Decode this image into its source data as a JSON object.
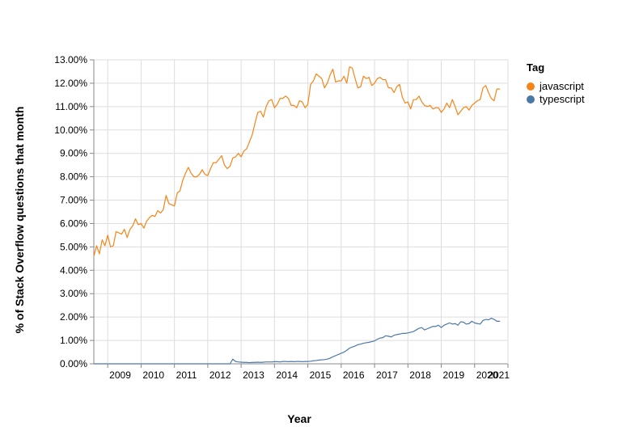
{
  "chart_data": {
    "type": "line",
    "xlabel": "Year",
    "ylabel": "% of Stack Overflow questions that month",
    "xlim": [
      "2008-08",
      "2021-01"
    ],
    "ylim": [
      0,
      13
    ],
    "x_ticks": [
      "2009",
      "2010",
      "2011",
      "2012",
      "2013",
      "2014",
      "2015",
      "2016",
      "2017",
      "2018",
      "2019",
      "2020",
      "2021"
    ],
    "y_ticks": [
      "0.00%",
      "1.00%",
      "2.00%",
      "3.00%",
      "4.00%",
      "5.00%",
      "6.00%",
      "7.00%",
      "8.00%",
      "9.00%",
      "10.00%",
      "11.00%",
      "12.00%",
      "13.00%"
    ],
    "grid": true,
    "legend": {
      "title": "Tag",
      "position": "right"
    },
    "series": [
      {
        "name": "javascript",
        "color": "#f58518",
        "points": [
          [
            "2008-08",
            4.6
          ],
          [
            "2008-09",
            5.05
          ],
          [
            "2008-10",
            4.7
          ],
          [
            "2008-11",
            5.3
          ],
          [
            "2008-12",
            5.05
          ],
          [
            "2009-01",
            5.5
          ],
          [
            "2009-02",
            5.0
          ],
          [
            "2009-03",
            5.05
          ],
          [
            "2009-04",
            5.65
          ],
          [
            "2009-05",
            5.6
          ],
          [
            "2009-06",
            5.55
          ],
          [
            "2009-07",
            5.75
          ],
          [
            "2009-08",
            5.4
          ],
          [
            "2009-09",
            5.75
          ],
          [
            "2009-10",
            5.9
          ],
          [
            "2009-11",
            6.2
          ],
          [
            "2009-12",
            5.95
          ],
          [
            "2010-01",
            6.0
          ],
          [
            "2010-02",
            5.8
          ],
          [
            "2010-03",
            6.1
          ],
          [
            "2010-04",
            6.25
          ],
          [
            "2010-05",
            6.35
          ],
          [
            "2010-06",
            6.3
          ],
          [
            "2010-07",
            6.55
          ],
          [
            "2010-08",
            6.45
          ],
          [
            "2010-09",
            6.6
          ],
          [
            "2010-10",
            7.2
          ],
          [
            "2010-11",
            6.85
          ],
          [
            "2010-12",
            6.8
          ],
          [
            "2011-01",
            6.75
          ],
          [
            "2011-02",
            7.3
          ],
          [
            "2011-03",
            7.4
          ],
          [
            "2011-04",
            7.85
          ],
          [
            "2011-05",
            8.15
          ],
          [
            "2011-06",
            8.4
          ],
          [
            "2011-07",
            8.15
          ],
          [
            "2011-08",
            8.0
          ],
          [
            "2011-09",
            8.0
          ],
          [
            "2011-10",
            8.1
          ],
          [
            "2011-11",
            8.3
          ],
          [
            "2011-12",
            8.1
          ],
          [
            "2012-01",
            8.05
          ],
          [
            "2012-02",
            8.35
          ],
          [
            "2012-03",
            8.6
          ],
          [
            "2012-04",
            8.6
          ],
          [
            "2012-05",
            8.75
          ],
          [
            "2012-06",
            8.9
          ],
          [
            "2012-07",
            8.5
          ],
          [
            "2012-08",
            8.35
          ],
          [
            "2012-09",
            8.45
          ],
          [
            "2012-10",
            8.8
          ],
          [
            "2012-11",
            8.85
          ],
          [
            "2012-12",
            9.0
          ],
          [
            "2013-01",
            8.85
          ],
          [
            "2013-02",
            9.1
          ],
          [
            "2013-03",
            9.2
          ],
          [
            "2013-04",
            9.5
          ],
          [
            "2013-05",
            9.8
          ],
          [
            "2013-06",
            10.3
          ],
          [
            "2013-07",
            10.75
          ],
          [
            "2013-08",
            10.8
          ],
          [
            "2013-09",
            10.55
          ],
          [
            "2013-10",
            11.0
          ],
          [
            "2013-11",
            11.25
          ],
          [
            "2013-12",
            11.3
          ],
          [
            "2014-01",
            10.95
          ],
          [
            "2014-02",
            11.1
          ],
          [
            "2014-03",
            11.35
          ],
          [
            "2014-04",
            11.35
          ],
          [
            "2014-05",
            11.45
          ],
          [
            "2014-06",
            11.35
          ],
          [
            "2014-07",
            11.05
          ],
          [
            "2014-08",
            11.05
          ],
          [
            "2014-09",
            10.95
          ],
          [
            "2014-10",
            11.25
          ],
          [
            "2014-11",
            11.2
          ],
          [
            "2014-12",
            10.95
          ],
          [
            "2015-01",
            11.1
          ],
          [
            "2015-02",
            11.95
          ],
          [
            "2015-03",
            12.1
          ],
          [
            "2015-04",
            12.4
          ],
          [
            "2015-05",
            12.3
          ],
          [
            "2015-06",
            12.2
          ],
          [
            "2015-07",
            11.8
          ],
          [
            "2015-08",
            12.0
          ],
          [
            "2015-09",
            12.35
          ],
          [
            "2015-10",
            12.6
          ],
          [
            "2015-11",
            12.05
          ],
          [
            "2015-12",
            12.1
          ],
          [
            "2016-01",
            12.1
          ],
          [
            "2016-02",
            12.3
          ],
          [
            "2016-03",
            12.0
          ],
          [
            "2016-04",
            12.7
          ],
          [
            "2016-05",
            12.65
          ],
          [
            "2016-06",
            12.2
          ],
          [
            "2016-07",
            11.8
          ],
          [
            "2016-08",
            11.85
          ],
          [
            "2016-09",
            12.3
          ],
          [
            "2016-10",
            12.2
          ],
          [
            "2016-11",
            12.25
          ],
          [
            "2016-12",
            11.9
          ],
          [
            "2017-01",
            12.0
          ],
          [
            "2017-02",
            12.2
          ],
          [
            "2017-03",
            12.25
          ],
          [
            "2017-04",
            12.15
          ],
          [
            "2017-05",
            12.15
          ],
          [
            "2017-06",
            11.8
          ],
          [
            "2017-07",
            11.8
          ],
          [
            "2017-08",
            11.6
          ],
          [
            "2017-09",
            11.85
          ],
          [
            "2017-10",
            11.95
          ],
          [
            "2017-11",
            11.4
          ],
          [
            "2017-12",
            11.15
          ],
          [
            "2018-01",
            11.2
          ],
          [
            "2018-02",
            10.9
          ],
          [
            "2018-03",
            11.3
          ],
          [
            "2018-04",
            11.3
          ],
          [
            "2018-05",
            11.45
          ],
          [
            "2018-06",
            11.2
          ],
          [
            "2018-07",
            11.05
          ],
          [
            "2018-08",
            11.0
          ],
          [
            "2018-09",
            11.05
          ],
          [
            "2018-10",
            10.9
          ],
          [
            "2018-11",
            10.95
          ],
          [
            "2018-12",
            10.95
          ],
          [
            "2019-01",
            10.75
          ],
          [
            "2019-02",
            10.9
          ],
          [
            "2019-03",
            11.15
          ],
          [
            "2019-04",
            10.95
          ],
          [
            "2019-05",
            11.3
          ],
          [
            "2019-06",
            11.0
          ],
          [
            "2019-07",
            10.65
          ],
          [
            "2019-08",
            10.8
          ],
          [
            "2019-09",
            10.95
          ],
          [
            "2019-10",
            11.0
          ],
          [
            "2019-11",
            10.85
          ],
          [
            "2019-12",
            11.05
          ],
          [
            "2020-01",
            11.15
          ],
          [
            "2020-02",
            11.25
          ],
          [
            "2020-03",
            11.3
          ],
          [
            "2020-04",
            11.8
          ],
          [
            "2020-05",
            11.9
          ],
          [
            "2020-06",
            11.6
          ],
          [
            "2020-07",
            11.35
          ],
          [
            "2020-08",
            11.25
          ],
          [
            "2020-09",
            11.75
          ],
          [
            "2020-10",
            11.75
          ]
        ]
      },
      {
        "name": "typescript",
        "color": "#4c78a8",
        "points": [
          [
            "2008-08",
            0.0
          ],
          [
            "2009-01",
            0.0
          ],
          [
            "2010-01",
            0.0
          ],
          [
            "2011-01",
            0.0
          ],
          [
            "2012-01",
            0.0
          ],
          [
            "2012-09",
            0.0
          ],
          [
            "2012-10",
            0.2
          ],
          [
            "2012-11",
            0.1
          ],
          [
            "2012-12",
            0.08
          ],
          [
            "2013-01",
            0.07
          ],
          [
            "2013-02",
            0.06
          ],
          [
            "2013-03",
            0.06
          ],
          [
            "2013-04",
            0.05
          ],
          [
            "2013-05",
            0.06
          ],
          [
            "2013-06",
            0.06
          ],
          [
            "2013-07",
            0.07
          ],
          [
            "2013-08",
            0.06
          ],
          [
            "2013-09",
            0.07
          ],
          [
            "2013-10",
            0.08
          ],
          [
            "2013-11",
            0.08
          ],
          [
            "2013-12",
            0.08
          ],
          [
            "2014-01",
            0.09
          ],
          [
            "2014-02",
            0.09
          ],
          [
            "2014-03",
            0.08
          ],
          [
            "2014-04",
            0.1
          ],
          [
            "2014-05",
            0.1
          ],
          [
            "2014-06",
            0.09
          ],
          [
            "2014-07",
            0.1
          ],
          [
            "2014-08",
            0.09
          ],
          [
            "2014-09",
            0.1
          ],
          [
            "2014-10",
            0.1
          ],
          [
            "2014-11",
            0.09
          ],
          [
            "2014-12",
            0.1
          ],
          [
            "2015-01",
            0.1
          ],
          [
            "2015-02",
            0.11
          ],
          [
            "2015-03",
            0.13
          ],
          [
            "2015-04",
            0.14
          ],
          [
            "2015-05",
            0.16
          ],
          [
            "2015-06",
            0.17
          ],
          [
            "2015-07",
            0.18
          ],
          [
            "2015-08",
            0.2
          ],
          [
            "2015-09",
            0.24
          ],
          [
            "2015-10",
            0.3
          ],
          [
            "2015-11",
            0.35
          ],
          [
            "2015-12",
            0.4
          ],
          [
            "2016-01",
            0.45
          ],
          [
            "2016-02",
            0.5
          ],
          [
            "2016-03",
            0.58
          ],
          [
            "2016-04",
            0.67
          ],
          [
            "2016-05",
            0.72
          ],
          [
            "2016-06",
            0.76
          ],
          [
            "2016-07",
            0.82
          ],
          [
            "2016-08",
            0.84
          ],
          [
            "2016-09",
            0.88
          ],
          [
            "2016-10",
            0.9
          ],
          [
            "2016-11",
            0.92
          ],
          [
            "2016-12",
            0.95
          ],
          [
            "2017-01",
            0.98
          ],
          [
            "2017-02",
            1.05
          ],
          [
            "2017-03",
            1.1
          ],
          [
            "2017-04",
            1.12
          ],
          [
            "2017-05",
            1.2
          ],
          [
            "2017-06",
            1.18
          ],
          [
            "2017-07",
            1.15
          ],
          [
            "2017-08",
            1.22
          ],
          [
            "2017-09",
            1.25
          ],
          [
            "2017-10",
            1.27
          ],
          [
            "2017-11",
            1.3
          ],
          [
            "2017-12",
            1.3
          ],
          [
            "2018-01",
            1.32
          ],
          [
            "2018-02",
            1.35
          ],
          [
            "2018-03",
            1.38
          ],
          [
            "2018-04",
            1.45
          ],
          [
            "2018-05",
            1.52
          ],
          [
            "2018-06",
            1.55
          ],
          [
            "2018-07",
            1.45
          ],
          [
            "2018-08",
            1.5
          ],
          [
            "2018-09",
            1.55
          ],
          [
            "2018-10",
            1.6
          ],
          [
            "2018-11",
            1.6
          ],
          [
            "2018-12",
            1.65
          ],
          [
            "2019-01",
            1.55
          ],
          [
            "2019-02",
            1.65
          ],
          [
            "2019-03",
            1.7
          ],
          [
            "2019-04",
            1.75
          ],
          [
            "2019-05",
            1.7
          ],
          [
            "2019-06",
            1.72
          ],
          [
            "2019-07",
            1.65
          ],
          [
            "2019-08",
            1.8
          ],
          [
            "2019-09",
            1.78
          ],
          [
            "2019-10",
            1.7
          ],
          [
            "2019-11",
            1.72
          ],
          [
            "2019-12",
            1.82
          ],
          [
            "2020-01",
            1.75
          ],
          [
            "2020-02",
            1.72
          ],
          [
            "2020-03",
            1.7
          ],
          [
            "2020-04",
            1.85
          ],
          [
            "2020-05",
            1.9
          ],
          [
            "2020-06",
            1.88
          ],
          [
            "2020-07",
            1.95
          ],
          [
            "2020-08",
            1.9
          ],
          [
            "2020-09",
            1.82
          ],
          [
            "2020-10",
            1.82
          ]
        ]
      }
    ]
  }
}
